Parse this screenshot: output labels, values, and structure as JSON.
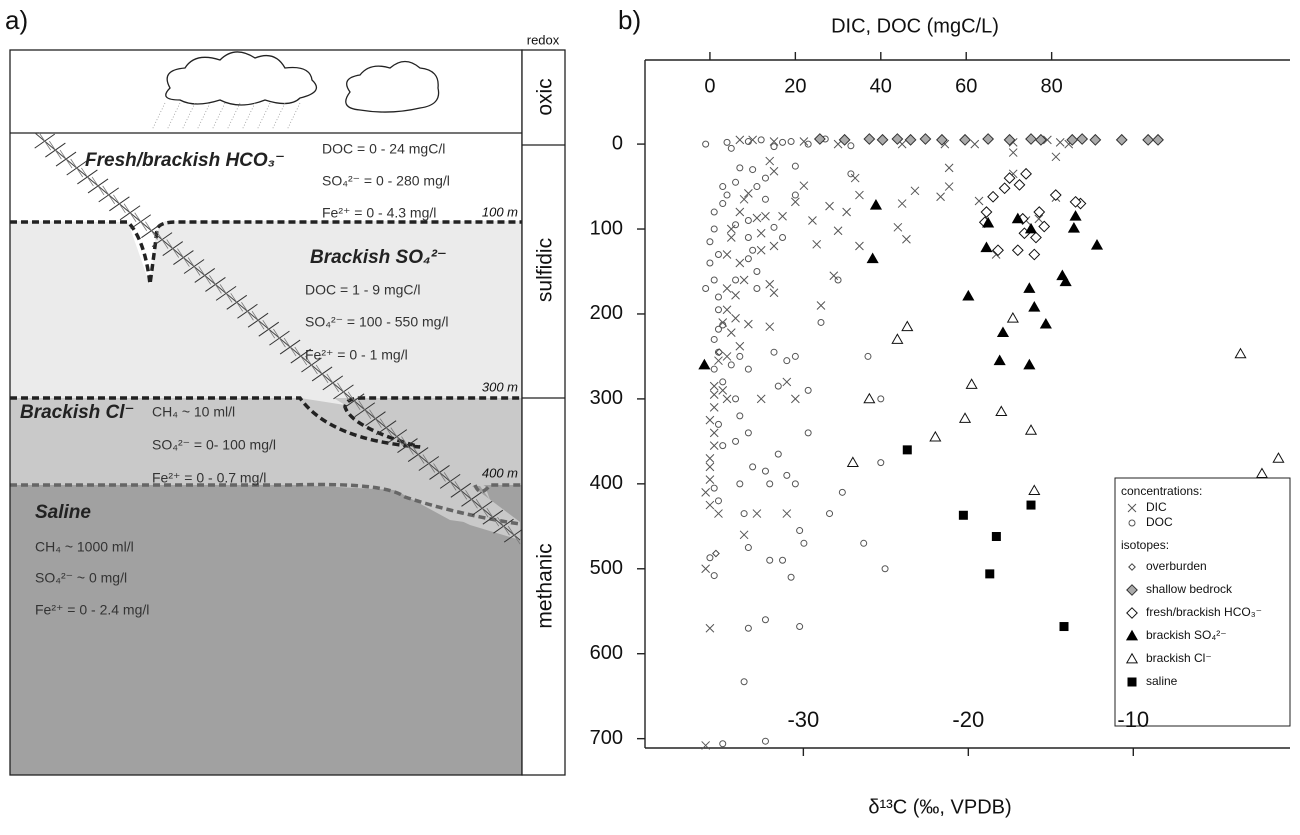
{
  "panel_a": {
    "label": "a)",
    "redox_title": "redox",
    "redox": [
      "oxic",
      "sulfidic",
      "methanic"
    ],
    "depths": [
      "100 m",
      "300 m",
      "400 m"
    ],
    "zones": [
      {
        "name": "Fresh/brackish HCO₃⁻",
        "lines": [
          "DOC = 0 - 24 mgC/l",
          "SO₄²⁻ = 0 - 280 mg/l",
          "Fe²⁺ = 0 - 4.3 mg/l"
        ]
      },
      {
        "name": "Brackish SO₄²⁻",
        "lines": [
          "DOC = 1 - 9 mgC/l",
          "SO₄²⁻ = 100 - 550 mg/l",
          "Fe²⁺ = 0 - 1 mg/l"
        ]
      },
      {
        "name": "Brackish Cl⁻",
        "lines": [
          "CH₄ ~ 10 ml/l",
          "SO₄²⁻ = 0- 100 mg/l",
          "Fe²⁺ = 0 - 0.7 mg/l"
        ]
      },
      {
        "name": "Saline",
        "lines": [
          "CH₄ ~ 1000 ml/l",
          "SO₄²⁻ ~ 0 mg/l",
          "Fe²⁺ = 0 - 2.4 mg/l"
        ]
      }
    ]
  },
  "chart_data": {
    "type": "scatter",
    "panel_label": "b)",
    "xlabel": "δ¹³C (‰, VPDB)",
    "x2label": "DIC, DOC (mgC/L)",
    "xlim": [
      -39.6,
      -0.5
    ],
    "xticks": [
      -30,
      -20,
      -10
    ],
    "x2lim": [
      -15.2,
      135.8
    ],
    "x2ticks": [
      0,
      20,
      40,
      60,
      80
    ],
    "ylim": [
      711,
      -99
    ],
    "yticks": [
      0,
      100,
      200,
      300,
      400,
      500,
      600,
      700
    ],
    "legend_groups": [
      "concentrations:",
      "isotopes:"
    ],
    "series": [
      {
        "name": "DIC",
        "marker": "cross",
        "color": "#555",
        "fill": "none",
        "axis": "x2",
        "legend_group": 0,
        "x": [
          7,
          10,
          15,
          22,
          30,
          45,
          55,
          62,
          71,
          79,
          82,
          84,
          81,
          81,
          71,
          71,
          63,
          74,
          56,
          56,
          54,
          48,
          45,
          44,
          46,
          34,
          35,
          32,
          30,
          28,
          29,
          25,
          24,
          20,
          22,
          14,
          9,
          11,
          12,
          12,
          13,
          15,
          17,
          15,
          8,
          7,
          5,
          5,
          4,
          7,
          8,
          4,
          6,
          14,
          15,
          4,
          3,
          6,
          5,
          7,
          9,
          14,
          12,
          18,
          20,
          4,
          2,
          1,
          1,
          1,
          0,
          1,
          1,
          0,
          0,
          0,
          -1,
          0,
          2,
          8,
          11,
          3,
          4,
          -1,
          0,
          -1,
          77,
          67,
          35,
          26,
          18
        ],
        "y": [
          -5,
          -5,
          -3,
          -3,
          0,
          0,
          0,
          0,
          -2,
          -5,
          -2,
          0,
          15,
          63,
          10,
          35,
          67,
          90,
          28,
          50,
          62,
          55,
          70,
          98,
          112,
          40,
          60,
          80,
          102,
          73,
          155,
          118,
          90,
          68,
          49,
          20,
          58,
          87,
          105,
          125,
          85,
          120,
          85,
          32,
          65,
          80,
          100,
          110,
          130,
          140,
          160,
          170,
          178,
          165,
          175,
          195,
          210,
          205,
          222,
          238,
          212,
          215,
          300,
          280,
          300,
          250,
          255,
          285,
          295,
          310,
          325,
          340,
          355,
          370,
          380,
          395,
          410,
          425,
          435,
          460,
          435,
          290,
          300,
          500,
          570,
          708,
          88,
          130,
          120,
          190,
          435
        ]
      },
      {
        "name": "DOC",
        "marker": "circle",
        "color": "#555",
        "fill": "none",
        "axis": "x2",
        "legend_group": 0,
        "x": [
          -1,
          4,
          5,
          9,
          12,
          17,
          23,
          27,
          33,
          20,
          15,
          19,
          1,
          1,
          0,
          2,
          0,
          1,
          -1,
          2,
          2,
          3,
          4,
          3,
          6,
          7,
          10,
          13,
          11,
          13,
          9,
          6,
          9,
          10,
          11,
          6,
          3,
          2,
          1,
          2,
          1,
          5,
          7,
          9,
          3,
          6,
          7,
          2,
          6,
          9,
          3,
          1,
          7,
          2,
          8,
          9,
          14,
          16,
          18,
          20,
          10,
          13,
          21,
          17,
          19,
          14,
          22,
          28,
          31,
          36,
          41,
          37,
          40,
          40,
          15,
          18,
          16,
          20,
          23,
          13,
          21,
          9,
          8,
          3,
          13,
          0,
          1,
          15,
          17,
          30,
          33,
          20,
          9,
          11,
          23,
          26
        ],
        "y": [
          0,
          -2,
          5,
          -3,
          -5,
          -2,
          0,
          -6,
          2,
          26,
          3,
          -3,
          80,
          100,
          115,
          130,
          140,
          160,
          170,
          180,
          195,
          70,
          60,
          50,
          45,
          28,
          30,
          40,
          50,
          65,
          90,
          95,
          110,
          125,
          150,
          160,
          213,
          218,
          230,
          245,
          265,
          260,
          250,
          265,
          280,
          300,
          320,
          330,
          350,
          340,
          355,
          405,
          400,
          420,
          435,
          475,
          400,
          365,
          390,
          400,
          380,
          385,
          455,
          490,
          510,
          490,
          470,
          435,
          410,
          470,
          500,
          250,
          300,
          375,
          245,
          255,
          285,
          250,
          290,
          560,
          568,
          570,
          633,
          706,
          703,
          487,
          508,
          98,
          110,
          160,
          35,
          60,
          135,
          170,
          340,
          210
        ]
      },
      {
        "name": "overburden",
        "marker": "diamond-small",
        "color": "#444",
        "fill": "#fff",
        "legend_group": 1,
        "x": [
          -35.3,
          -35.1
        ],
        "y": [
          482,
          245
        ]
      },
      {
        "name": "shallow bedrock",
        "marker": "diamond",
        "color": "#333",
        "fill": "#aaa",
        "legend_group": 1,
        "x": [
          -29.0,
          -27.5,
          -26.0,
          -25.2,
          -24.3,
          -23.5,
          -22.6,
          -21.6,
          -20.2,
          -18.8,
          -17.5,
          -16.2,
          -15.6,
          -13.7,
          -13.1,
          -12.3,
          -10.7,
          -9.1,
          -8.5
        ],
        "y": [
          -6,
          -5,
          -6,
          -5,
          -6,
          -5,
          -6,
          -5,
          -5,
          -6,
          -5,
          -6,
          -5,
          -5,
          -6,
          -5,
          -5,
          -5,
          -5
        ]
      },
      {
        "name": "fresh/brackish HCO₃⁻",
        "marker": "diamond",
        "color": "#111",
        "fill": "#fff",
        "legend_group": 1,
        "x": [
          -17.5,
          -16.5,
          -16.9,
          -17.8,
          -18.5,
          -18.9,
          -19.0,
          -16.7,
          -15.7,
          -15.4,
          -15.9,
          -14.7,
          -13.2,
          -13.5,
          -16.0,
          -17.0,
          -16.6,
          -18.2
        ],
        "y": [
          40,
          35,
          48,
          52,
          62,
          80,
          92,
          88,
          80,
          97,
          110,
          60,
          70,
          68,
          130,
          125,
          105,
          125
        ]
      },
      {
        "name": "brackish SO₄²⁻",
        "marker": "triangle",
        "color": "#000",
        "fill": "#000",
        "legend_group": 1,
        "x": [
          -36.0,
          -25.6,
          -25.8,
          -20.0,
          -18.8,
          -18.9,
          -17.0,
          -17.9,
          -18.1,
          -16.2,
          -16.3,
          -16.3,
          -16.0,
          -15.3,
          -14.3,
          -14.1,
          -13.5,
          -13.6,
          -12.2
        ],
        "y": [
          260,
          72,
          135,
          179,
          93,
          122,
          88,
          222,
          255,
          100,
          170,
          260,
          192,
          212,
          155,
          162,
          85,
          99,
          119
        ]
      },
      {
        "name": "brackish Cl⁻",
        "marker": "triangle",
        "color": "#111",
        "fill": "#fff",
        "legend_group": 1,
        "x": [
          -23.7,
          -24.3,
          -26.0,
          -27.0,
          -22.0,
          -20.2,
          -19.8,
          -18.0,
          -17.3,
          -16.2,
          -16.0,
          -3.5,
          -2.2,
          -1.2
        ],
        "y": [
          215,
          230,
          300,
          375,
          345,
          323,
          283,
          315,
          205,
          337,
          408,
          247,
          388,
          370
        ]
      },
      {
        "name": "saline",
        "marker": "square",
        "color": "#000",
        "fill": "#000",
        "legend_group": 1,
        "x": [
          -23.7,
          -20.3,
          -18.3,
          -18.7,
          -16.2,
          -14.2
        ],
        "y": [
          360,
          437,
          462,
          506,
          425,
          568
        ]
      }
    ]
  }
}
